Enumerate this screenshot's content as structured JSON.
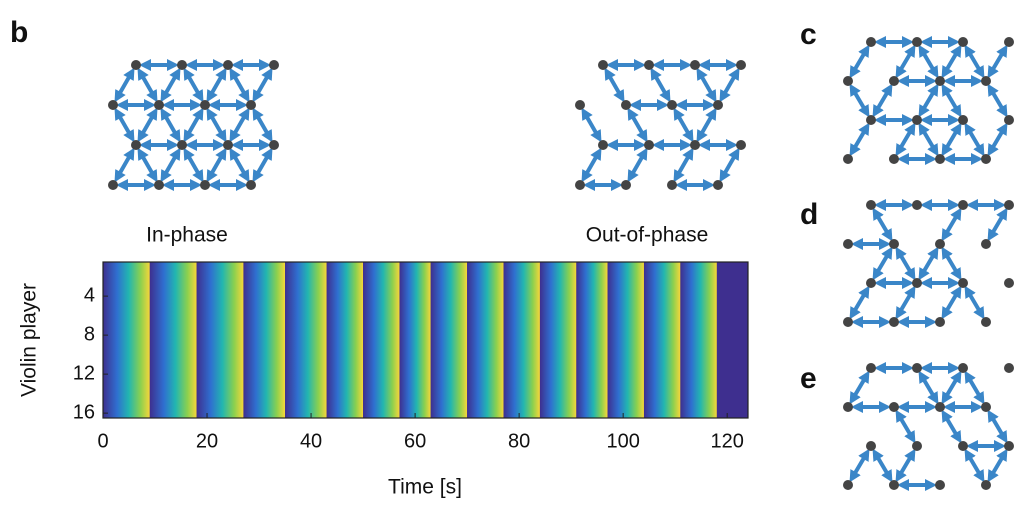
{
  "panel_labels": [
    "b",
    "c",
    "d",
    "e"
  ],
  "lattice_labels": [
    "In-phase",
    "Out-of-phase"
  ],
  "chart_data": {
    "type": "heatmap",
    "ylabel": "Violin player",
    "xlabel": "Time [s]",
    "x": [
      9,
      18,
      27,
      35,
      43,
      50,
      57,
      63,
      70,
      77,
      84,
      91,
      97,
      104,
      111,
      118
    ],
    "xlim": [
      0,
      124
    ],
    "ylim": [
      0.5,
      16.5
    ],
    "xticks": [
      0,
      20,
      40,
      60,
      80,
      100,
      120
    ],
    "yticks": [
      4,
      8,
      12,
      16
    ]
  }
}
